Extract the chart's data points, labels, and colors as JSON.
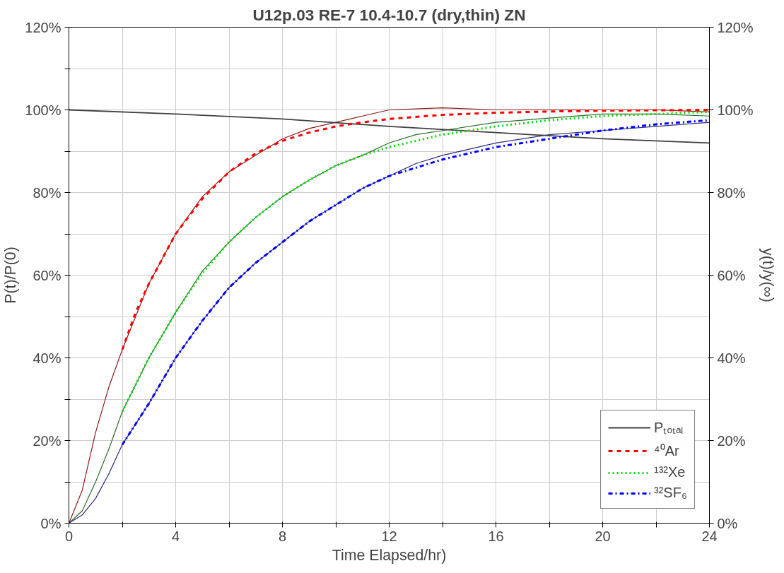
{
  "chart_data": {
    "type": "line",
    "title": "U12p.03 RE-7 10.4-10.7 (dry,thin) ZN",
    "xlabel": "Time Elapsed/hr)",
    "ylabel": "P(t)/P(0)",
    "y2label": "y(t)/y(∞)",
    "xlim": [
      0,
      24
    ],
    "xticks": [
      0,
      {
        "value": 2,
        "label": null
      },
      4,
      {
        "value": 6,
        "label": null
      },
      8,
      {
        "value": 10,
        "label": null
      },
      12,
      {
        "value": 14,
        "label": null
      },
      16,
      {
        "value": 18,
        "label": null
      },
      20,
      {
        "value": 22,
        "label": null
      },
      24
    ],
    "ylim": [
      0,
      120
    ],
    "yticks": [
      {
        "value": 0,
        "label": "0%"
      },
      {
        "value": 10,
        "label": null
      },
      {
        "value": 20,
        "label": "20%"
      },
      {
        "value": 30,
        "label": null
      },
      {
        "value": 40,
        "label": "40%"
      },
      {
        "value": 50,
        "label": null
      },
      {
        "value": 60,
        "label": "60%"
      },
      {
        "value": 70,
        "label": null
      },
      {
        "value": 80,
        "label": "80%"
      },
      {
        "value": 90,
        "label": null
      },
      {
        "value": 100,
        "label": "100%"
      },
      {
        "value": 110,
        "label": null
      },
      {
        "value": 120,
        "label": "120%"
      }
    ],
    "y2lim": [
      0,
      120
    ],
    "y2ticks": [
      {
        "value": 0,
        "label": "0%"
      },
      {
        "value": 20,
        "label": "20%"
      },
      {
        "value": 40,
        "label": "40%"
      },
      {
        "value": 60,
        "label": "60%"
      },
      {
        "value": 80,
        "label": "80%"
      },
      {
        "value": 100,
        "label": "100%"
      },
      {
        "value": 120,
        "label": "120%"
      }
    ],
    "grid": true,
    "legend": "bottom right",
    "series": [
      {
        "color": "#8b1a1a",
        "line_style": "solid",
        "x": [
          0,
          0.5,
          1,
          1.5,
          2,
          3,
          4,
          5,
          6,
          7,
          8,
          9,
          10,
          11,
          12,
          14,
          16,
          18,
          20,
          22,
          24
        ],
        "values": [
          0,
          8,
          22,
          33,
          42,
          58,
          70,
          79,
          85,
          89,
          93,
          95.5,
          97,
          98.5,
          100,
          100.5,
          100,
          100,
          100,
          100,
          99.5
        ]
      },
      {
        "color": "#2e6b2e",
        "line_style": "solid",
        "x": [
          0,
          0.5,
          1,
          1.5,
          2,
          3,
          4,
          5,
          6,
          7,
          8,
          9,
          10,
          11,
          12,
          13,
          14,
          16,
          18,
          20,
          22,
          24
        ],
        "values": [
          0,
          3,
          10,
          18,
          27,
          40,
          51,
          61,
          68,
          74,
          79,
          83,
          86.5,
          89,
          92,
          94,
          95,
          97,
          98,
          99,
          99,
          98.5
        ]
      },
      {
        "color": "#2a2a80",
        "line_style": "solid",
        "x": [
          0,
          0.5,
          1,
          1.5,
          2,
          3,
          4,
          5,
          6,
          7,
          8,
          9,
          10,
          11,
          12,
          13,
          14,
          16,
          18,
          20,
          22,
          24
        ],
        "values": [
          0,
          2,
          6,
          12,
          19,
          29,
          40,
          49,
          57,
          63,
          68,
          73,
          77,
          81,
          84,
          87,
          89,
          92,
          94,
          95,
          96,
          97
        ]
      },
      {
        "name": "Pₜₒₜₐₗ",
        "color": "#404040",
        "line_style": "solid",
        "x": [
          0,
          4,
          8,
          12,
          16,
          20,
          24
        ],
        "values": [
          100,
          99,
          97.8,
          96,
          94.5,
          93,
          92
        ]
      },
      {
        "name": "⁴⁰Ar",
        "color": "#ff0000",
        "line_style": "dashed",
        "x": [
          2,
          2.5,
          3,
          4,
          5,
          6,
          7,
          8,
          9,
          10,
          11,
          12,
          14,
          16,
          18,
          20,
          24
        ],
        "values": [
          42,
          51,
          58,
          70,
          78.5,
          85,
          89.5,
          92.5,
          94.5,
          96,
          97,
          97.8,
          98.8,
          99.3,
          99.6,
          99.8,
          100
        ]
      },
      {
        "name": "¹³²Xe",
        "color": "#00dd00",
        "line_style": "dotted",
        "x": [
          2,
          3,
          4,
          5,
          6,
          7,
          8,
          9,
          10,
          11,
          12,
          14,
          16,
          18,
          20,
          22,
          24
        ],
        "values": [
          27,
          40,
          51,
          60.5,
          68,
          74,
          79,
          83,
          86.5,
          89,
          91,
          94,
          96,
          97.5,
          98.5,
          99,
          99.5
        ]
      },
      {
        "name": "³²SF₆",
        "color": "#0000ff",
        "line_style": "dashdot",
        "x": [
          2,
          3,
          4,
          5,
          6,
          7,
          8,
          9,
          10,
          11,
          12,
          14,
          16,
          18,
          20,
          22,
          24
        ],
        "values": [
          19,
          29,
          40,
          49,
          57,
          63,
          68,
          73,
          77,
          81,
          84,
          88,
          91,
          93,
          95,
          96.5,
          97.5
        ]
      }
    ]
  }
}
